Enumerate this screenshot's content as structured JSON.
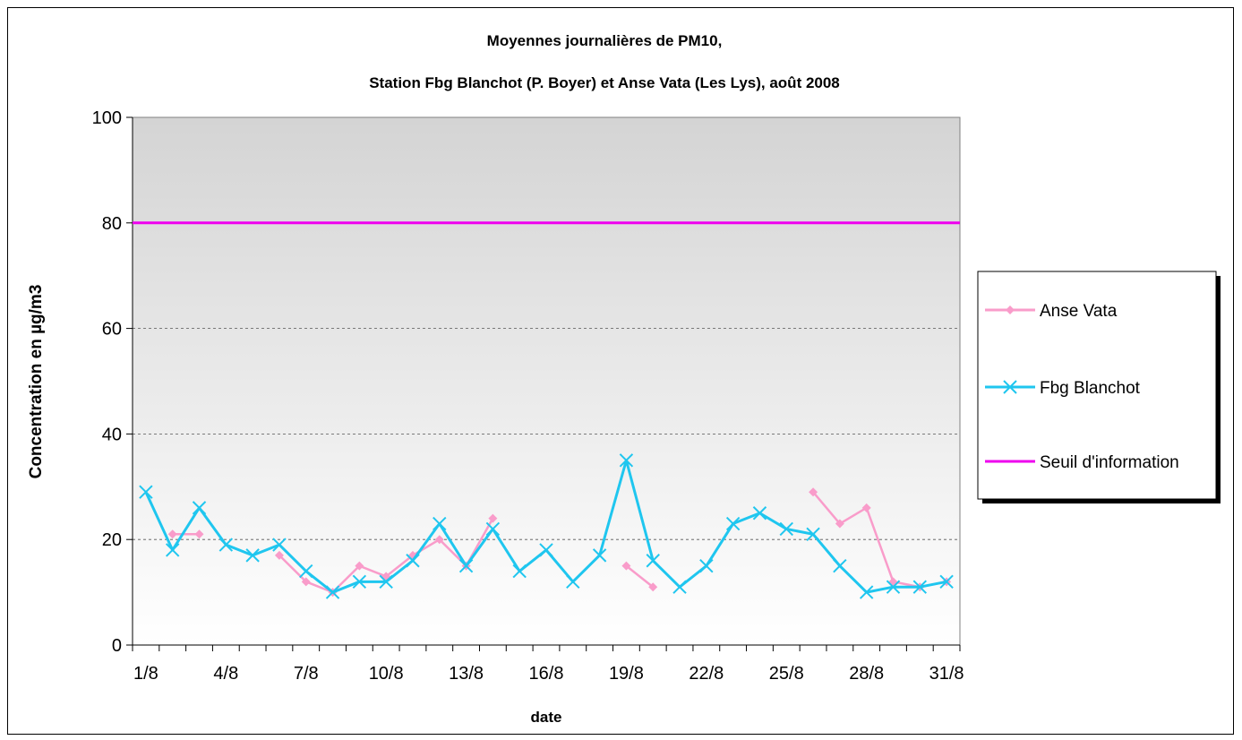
{
  "chart_data": {
    "type": "line",
    "title_line1": "Moyennes journalières de PM10,",
    "title_line2": "Station Fbg Blanchot (P. Boyer) et Anse Vata (Les Lys), août 2008",
    "xlabel": "date",
    "ylabel": "Concentration en µg/m3",
    "ylim": [
      0,
      100
    ],
    "yticks": [
      "0",
      "20",
      "40",
      "60",
      "80",
      "100"
    ],
    "xtick_labels": [
      "1/8",
      "4/8",
      "7/8",
      "10/8",
      "13/8",
      "16/8",
      "19/8",
      "22/8",
      "25/8",
      "28/8",
      "31/8"
    ],
    "x_days": [
      1,
      2,
      3,
      4,
      5,
      6,
      7,
      8,
      9,
      10,
      11,
      12,
      13,
      14,
      15,
      16,
      17,
      18,
      19,
      20,
      21,
      22,
      23,
      24,
      25,
      26,
      27,
      28,
      29,
      30,
      31
    ],
    "grid": "horizontal dashed",
    "legend_position": "right",
    "series": [
      {
        "name": "Anse Vata",
        "color": "#F99CCA",
        "marker": "diamond",
        "values": [
          null,
          21,
          21,
          null,
          null,
          17,
          12,
          10,
          15,
          13,
          17,
          20,
          15,
          24,
          null,
          null,
          null,
          null,
          15,
          11,
          null,
          null,
          null,
          null,
          null,
          29,
          23,
          26,
          12,
          11,
          12
        ]
      },
      {
        "name": "Fbg Blanchot",
        "color": "#1FC6EF",
        "marker": "x",
        "values": [
          29,
          18,
          26,
          19,
          17,
          19,
          14,
          10,
          12,
          12,
          16,
          23,
          15,
          22,
          14,
          18,
          12,
          17,
          35,
          16,
          11,
          15,
          23,
          25,
          22,
          21,
          15,
          10,
          11,
          11,
          12
        ]
      },
      {
        "name": "Seuil d'information",
        "color": "#EE00EE",
        "marker": "none",
        "values": [
          80,
          80,
          80,
          80,
          80,
          80,
          80,
          80,
          80,
          80,
          80,
          80,
          80,
          80,
          80,
          80,
          80,
          80,
          80,
          80,
          80,
          80,
          80,
          80,
          80,
          80,
          80,
          80,
          80,
          80,
          80
        ]
      }
    ]
  }
}
